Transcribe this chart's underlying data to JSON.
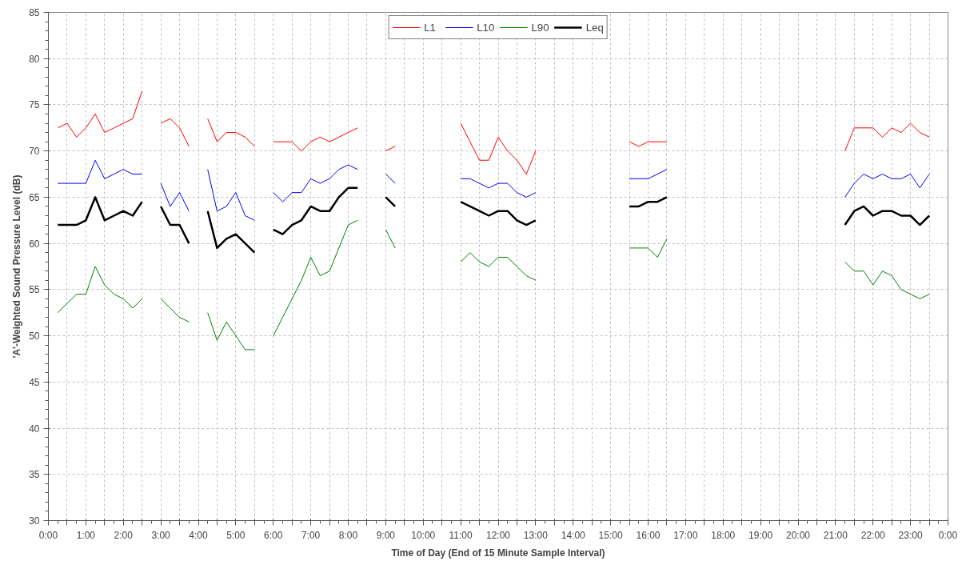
{
  "chart_data": {
    "type": "line",
    "xlabel": "Time of Day (End of 15 Minute Sample Interval)",
    "ylabel": "'A'-Weighted Sound Pressure Level (dB)",
    "x": [
      0.25,
      0.5,
      0.75,
      1,
      1.25,
      1.5,
      1.75,
      2,
      2.25,
      2.5,
      2.75,
      3,
      3.25,
      3.5,
      3.75,
      4,
      4.25,
      4.5,
      4.75,
      5,
      5.25,
      5.5,
      5.75,
      6,
      6.25,
      6.5,
      6.75,
      7,
      7.25,
      7.5,
      7.75,
      8,
      8.25,
      8.5,
      9,
      9.25,
      9.5,
      11,
      11.25,
      11.5,
      11.75,
      12,
      12.25,
      12.5,
      12.75,
      13,
      13.25,
      15.5,
      15.75,
      16,
      16.25,
      16.5,
      16.75,
      21.25,
      21.5,
      21.75,
      22,
      22.25,
      22.5,
      22.75,
      23,
      23.25,
      23.5
    ],
    "series": [
      {
        "name": "L1",
        "color": "#ff0000",
        "values": [
          72.5,
          73,
          71.5,
          72.5,
          74,
          72,
          72.5,
          73,
          73.5,
          76.5,
          null,
          73,
          73.5,
          72.5,
          70.5,
          null,
          73.5,
          71,
          72,
          72,
          71.5,
          70.5,
          null,
          71,
          71,
          71,
          70,
          71,
          71.5,
          71,
          71.5,
          72,
          72.5,
          null,
          70,
          70.5,
          null,
          73,
          71,
          69,
          69,
          71.5,
          70,
          69,
          67.5,
          70,
          null,
          71,
          70.5,
          71,
          71,
          71,
          null,
          70,
          72.5,
          72.5,
          72.5,
          71.5,
          72.5,
          72,
          73,
          72,
          71.5
        ]
      },
      {
        "name": "L10",
        "color": "#0000ff",
        "values": [
          66.5,
          66.5,
          66.5,
          66.5,
          69,
          67,
          67.5,
          68,
          67.5,
          67.5,
          null,
          66.5,
          64,
          65.5,
          63.5,
          null,
          68,
          63.5,
          64,
          65.5,
          63,
          62.5,
          null,
          65.5,
          64.5,
          65.5,
          65.5,
          67,
          66.5,
          67,
          68,
          68.5,
          68,
          null,
          67.5,
          66.5,
          null,
          67,
          67,
          66.5,
          66,
          66.5,
          66.5,
          65.5,
          65,
          65.5,
          null,
          67,
          67,
          67,
          67.5,
          68,
          null,
          65,
          66.5,
          67.5,
          67,
          67.5,
          67,
          67,
          67.5,
          66,
          67.5
        ]
      },
      {
        "name": "L90",
        "color": "#008000",
        "values": [
          52.5,
          53.5,
          54.5,
          54.5,
          57.5,
          55.5,
          54.5,
          54,
          53,
          54,
          null,
          54,
          53,
          52,
          51.5,
          null,
          52.5,
          49.5,
          51.5,
          50,
          48.5,
          48.5,
          null,
          50,
          52,
          54,
          56,
          58.5,
          56.5,
          57,
          59.5,
          62,
          62.5,
          null,
          61.5,
          59.5,
          null,
          58,
          59,
          58,
          57.5,
          58.5,
          58.5,
          57.5,
          56.5,
          56,
          null,
          59.5,
          59.5,
          59.5,
          58.5,
          60.5,
          null,
          58,
          57,
          57,
          55.5,
          57,
          56.5,
          55,
          54.5,
          54,
          54.5
        ]
      },
      {
        "name": "Leq",
        "color": "#000000",
        "values": [
          62,
          62,
          62,
          62.5,
          65,
          62.5,
          63,
          63.5,
          63,
          64.5,
          null,
          64,
          62,
          62,
          60,
          null,
          63.5,
          59.5,
          60.5,
          61,
          60,
          59,
          null,
          61.5,
          61,
          62,
          62.5,
          64,
          63.5,
          63.5,
          65,
          66,
          66,
          null,
          65,
          64,
          null,
          64.5,
          64,
          63.5,
          63,
          63.5,
          63.5,
          62.5,
          62,
          62.5,
          null,
          64,
          64,
          64.5,
          64.5,
          65,
          null,
          62,
          63.5,
          64,
          63,
          63.5,
          63.5,
          63,
          63,
          62,
          63
        ]
      }
    ],
    "xlim": [
      0,
      24
    ],
    "xticks": [
      {
        "value": 0,
        "label": "0:00"
      },
      {
        "value": 0.5,
        "label": null
      },
      {
        "value": 1,
        "label": "1:00"
      },
      {
        "value": 1.5,
        "label": null
      },
      {
        "value": 2,
        "label": "2:00"
      },
      {
        "value": 2.5,
        "label": null
      },
      {
        "value": 3,
        "label": "3:00"
      },
      {
        "value": 3.5,
        "label": null
      },
      {
        "value": 4,
        "label": "4:00"
      },
      {
        "value": 4.5,
        "label": null
      },
      {
        "value": 5,
        "label": "5:00"
      },
      {
        "value": 5.5,
        "label": null
      },
      {
        "value": 6,
        "label": "6:00"
      },
      {
        "value": 6.5,
        "label": null
      },
      {
        "value": 7,
        "label": "7:00"
      },
      {
        "value": 7.5,
        "label": null
      },
      {
        "value": 8,
        "label": "8:00"
      },
      {
        "value": 8.5,
        "label": null
      },
      {
        "value": 9,
        "label": "9:00"
      },
      {
        "value": 9.5,
        "label": null
      },
      {
        "value": 10,
        "label": "10:00"
      },
      {
        "value": 10.5,
        "label": null
      },
      {
        "value": 11,
        "label": "11:00"
      },
      {
        "value": 11.5,
        "label": null
      },
      {
        "value": 12,
        "label": "12:00"
      },
      {
        "value": 12.5,
        "label": null
      },
      {
        "value": 13,
        "label": "13:00"
      },
      {
        "value": 13.5,
        "label": null
      },
      {
        "value": 14,
        "label": "14:00"
      },
      {
        "value": 14.5,
        "label": null
      },
      {
        "value": 15,
        "label": "15:00"
      },
      {
        "value": 15.5,
        "label": null
      },
      {
        "value": 16,
        "label": "16:00"
      },
      {
        "value": 16.5,
        "label": null
      },
      {
        "value": 17,
        "label": "17:00"
      },
      {
        "value": 17.5,
        "label": null
      },
      {
        "value": 18,
        "label": "18:00"
      },
      {
        "value": 18.5,
        "label": null
      },
      {
        "value": 19,
        "label": "19:00"
      },
      {
        "value": 19.5,
        "label": null
      },
      {
        "value": 20,
        "label": "20:00"
      },
      {
        "value": 20.5,
        "label": null
      },
      {
        "value": 21,
        "label": "21:00"
      },
      {
        "value": 21.5,
        "label": null
      },
      {
        "value": 22,
        "label": "22:00"
      },
      {
        "value": 22.5,
        "label": null
      },
      {
        "value": 23,
        "label": "23:00"
      },
      {
        "value": 23.5,
        "label": null
      },
      {
        "value": 24,
        "label": "0:00"
      }
    ],
    "ylim": [
      30,
      85
    ],
    "yticks": [
      30,
      35,
      40,
      45,
      50,
      55,
      60,
      65,
      70,
      75,
      80,
      85
    ],
    "grid": true,
    "legend": "top",
    "marker": "none",
    "line_style": "solid"
  }
}
